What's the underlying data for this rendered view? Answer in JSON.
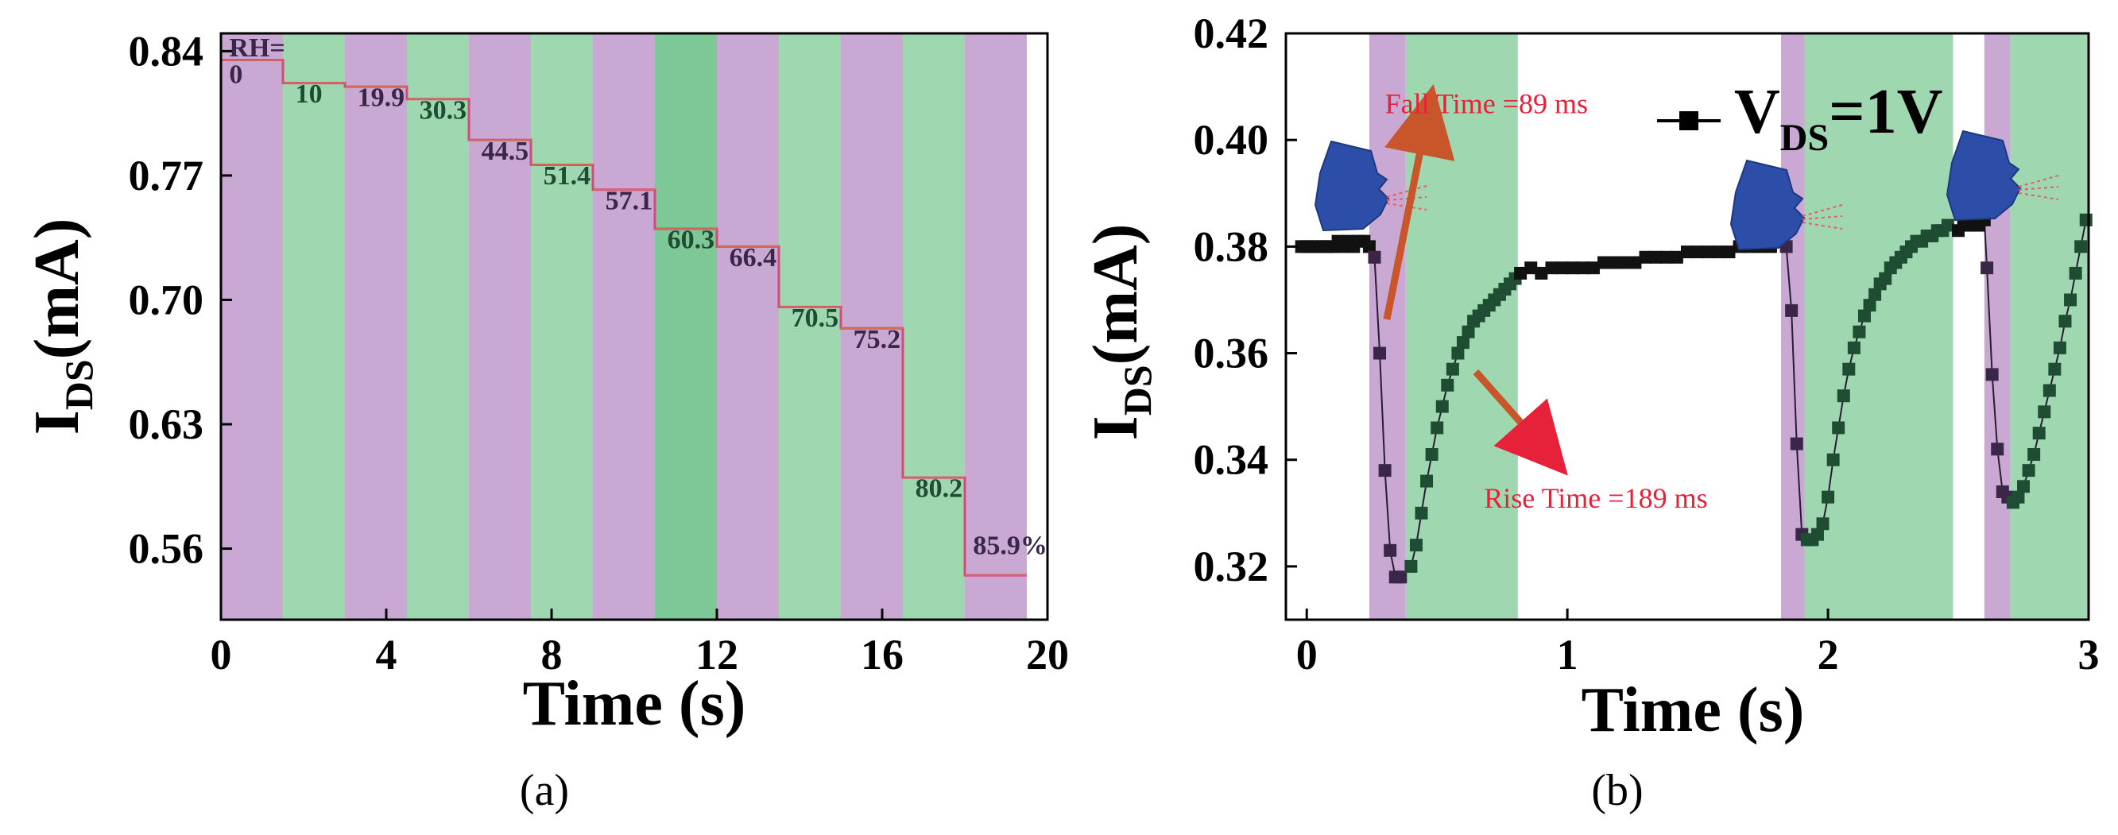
{
  "colors": {
    "purple": "#c9a9d3",
    "green": "#9fd8b0",
    "green_dark": "#7ec897",
    "trace_a": "#d9477a",
    "marker_dark": "#3a2648",
    "marker_green": "#1f4d33",
    "arrow_fall": "#c9552a",
    "arrow_rise": "#c9552a"
  },
  "captions": {
    "a": "(a)",
    "b": "(b)"
  },
  "chart_data": [
    {
      "id": "a",
      "type": "line",
      "title": "",
      "xlabel": "Time (s)",
      "ylabel_main": "I",
      "ylabel_sub": "DS",
      "ylabel_unit": "(mA)",
      "xlim": [
        0,
        20
      ],
      "ylim": [
        0.52,
        0.85
      ],
      "xticks": [
        0,
        4,
        8,
        12,
        16,
        20
      ],
      "xtick_labels": [
        "0",
        "4",
        "8",
        "12",
        "16",
        "20"
      ],
      "yticks": [
        0.56,
        0.63,
        0.7,
        0.77,
        0.84
      ],
      "ytick_labels": [
        "0.56",
        "0.63",
        "0.70",
        "0.77",
        "0.84"
      ],
      "bands": [
        {
          "x0": 0.0,
          "x1": 1.5,
          "kind": "purple"
        },
        {
          "x0": 1.5,
          "x1": 3.0,
          "kind": "green"
        },
        {
          "x0": 3.0,
          "x1": 4.5,
          "kind": "purple"
        },
        {
          "x0": 4.5,
          "x1": 6.0,
          "kind": "green"
        },
        {
          "x0": 6.0,
          "x1": 7.5,
          "kind": "purple"
        },
        {
          "x0": 7.5,
          "x1": 9.0,
          "kind": "green"
        },
        {
          "x0": 9.0,
          "x1": 10.5,
          "kind": "purple"
        },
        {
          "x0": 10.5,
          "x1": 12.0,
          "kind": "green_dark"
        },
        {
          "x0": 12.0,
          "x1": 13.5,
          "kind": "purple"
        },
        {
          "x0": 13.5,
          "x1": 15.0,
          "kind": "green"
        },
        {
          "x0": 15.0,
          "x1": 16.5,
          "kind": "purple"
        },
        {
          "x0": 16.5,
          "x1": 18.0,
          "kind": "green"
        },
        {
          "x0": 18.0,
          "x1": 19.5,
          "kind": "purple"
        }
      ],
      "steps": [
        {
          "x0": 0.0,
          "x1": 1.5,
          "y": 0.835
        },
        {
          "x0": 1.5,
          "x1": 3.0,
          "y": 0.822
        },
        {
          "x0": 3.0,
          "x1": 4.5,
          "y": 0.82
        },
        {
          "x0": 4.5,
          "x1": 6.0,
          "y": 0.813
        },
        {
          "x0": 6.0,
          "x1": 7.5,
          "y": 0.79
        },
        {
          "x0": 7.5,
          "x1": 9.0,
          "y": 0.776
        },
        {
          "x0": 9.0,
          "x1": 10.5,
          "y": 0.762
        },
        {
          "x0": 10.5,
          "x1": 12.0,
          "y": 0.74
        },
        {
          "x0": 12.0,
          "x1": 13.5,
          "y": 0.73
        },
        {
          "x0": 13.5,
          "x1": 15.0,
          "y": 0.696
        },
        {
          "x0": 15.0,
          "x1": 16.5,
          "y": 0.684
        },
        {
          "x0": 16.5,
          "x1": 18.0,
          "y": 0.6
        },
        {
          "x0": 18.0,
          "x1": 19.5,
          "y": 0.545
        }
      ],
      "rh_labels": [
        {
          "x": 0.2,
          "y": 0.837,
          "text": "RH=",
          "color": "#3a2648"
        },
        {
          "x": 0.2,
          "y": 0.822,
          "text": "0",
          "color": "#3a2648"
        },
        {
          "x": 1.8,
          "y": 0.811,
          "text": "10",
          "color": "#1f4d33"
        },
        {
          "x": 3.3,
          "y": 0.809,
          "text": "19.9",
          "color": "#3a2648"
        },
        {
          "x": 4.8,
          "y": 0.802,
          "text": "30.3",
          "color": "#1f4d33"
        },
        {
          "x": 6.3,
          "y": 0.779,
          "text": "44.5",
          "color": "#3a2648"
        },
        {
          "x": 7.8,
          "y": 0.765,
          "text": "51.4",
          "color": "#1f4d33"
        },
        {
          "x": 9.3,
          "y": 0.751,
          "text": "57.1",
          "color": "#3a2648"
        },
        {
          "x": 10.8,
          "y": 0.729,
          "text": "60.3",
          "color": "#1f4d33"
        },
        {
          "x": 12.3,
          "y": 0.719,
          "text": "66.4",
          "color": "#3a2648"
        },
        {
          "x": 13.8,
          "y": 0.685,
          "text": "70.5",
          "color": "#1f4d33"
        },
        {
          "x": 15.3,
          "y": 0.673,
          "text": "75.2",
          "color": "#3a2648"
        },
        {
          "x": 16.8,
          "y": 0.589,
          "text": "80.2",
          "color": "#1f4d33"
        },
        {
          "x": 18.2,
          "y": 0.557,
          "text": "85.9%",
          "color": "#3a2648"
        }
      ]
    },
    {
      "id": "b",
      "type": "scatter",
      "title": "",
      "xlabel": "Time (s)",
      "ylabel_main": "I",
      "ylabel_sub": "DS",
      "ylabel_unit": "(mA)",
      "xlim": [
        -0.08,
        3.0
      ],
      "ylim": [
        0.31,
        0.42
      ],
      "xticks": [
        0,
        1,
        2,
        3
      ],
      "xtick_labels": [
        "0",
        "1",
        "2",
        "3"
      ],
      "yticks": [
        0.32,
        0.34,
        0.36,
        0.38,
        0.4,
        0.42
      ],
      "ytick_labels": [
        "0.32",
        "0.34",
        "0.36",
        "0.38",
        "0.40",
        "0.42"
      ],
      "legend": {
        "label_main": "V",
        "label_sub": "DS",
        "label_rest": "=1V",
        "placement": "top-right"
      },
      "bands": [
        {
          "x0": 0.24,
          "x1": 0.38,
          "kind": "purple"
        },
        {
          "x0": 0.38,
          "x1": 0.81,
          "kind": "green"
        },
        {
          "x0": 1.82,
          "x1": 1.91,
          "kind": "purple"
        },
        {
          "x0": 1.91,
          "x1": 2.48,
          "kind": "green"
        },
        {
          "x0": 2.6,
          "x1": 2.7,
          "kind": "purple"
        },
        {
          "x0": 2.7,
          "x1": 3.0,
          "kind": "green"
        }
      ],
      "annotations": [
        {
          "text": "Fall Time =89 ms",
          "x": 0.3,
          "y": 0.405
        },
        {
          "text": "Rise Time =189 ms",
          "x": 0.68,
          "y": 0.331
        }
      ],
      "series": [
        {
          "name": "baseline-1",
          "kind": "dark",
          "x": [
            -0.02,
            0.0,
            0.02,
            0.04,
            0.06,
            0.08,
            0.1,
            0.12,
            0.14,
            0.16,
            0.18,
            0.2,
            0.22,
            0.24
          ],
          "y": [
            0.38,
            0.38,
            0.38,
            0.38,
            0.38,
            0.38,
            0.38,
            0.381,
            0.38,
            0.381,
            0.38,
            0.381,
            0.381,
            0.38
          ]
        },
        {
          "name": "fall-1",
          "kind": "dark",
          "x": [
            0.26,
            0.28,
            0.3,
            0.32,
            0.34,
            0.36
          ],
          "y": [
            0.378,
            0.36,
            0.338,
            0.323,
            0.318,
            0.318
          ]
        },
        {
          "name": "rise-1",
          "kind": "green",
          "x": [
            0.4,
            0.42,
            0.44,
            0.46,
            0.48,
            0.5,
            0.52,
            0.54,
            0.56,
            0.58,
            0.6,
            0.62,
            0.64,
            0.66,
            0.68,
            0.7,
            0.72,
            0.74,
            0.76,
            0.78,
            0.8
          ],
          "y": [
            0.32,
            0.324,
            0.33,
            0.336,
            0.341,
            0.346,
            0.35,
            0.354,
            0.357,
            0.36,
            0.362,
            0.364,
            0.366,
            0.367,
            0.368,
            0.369,
            0.37,
            0.371,
            0.372,
            0.373,
            0.374
          ]
        },
        {
          "name": "plateau",
          "kind": "dark",
          "x": [
            0.82,
            0.86,
            0.9,
            0.94,
            0.98,
            1.02,
            1.06,
            1.1,
            1.14,
            1.18,
            1.22,
            1.26,
            1.3,
            1.34,
            1.38,
            1.42,
            1.46,
            1.5,
            1.54,
            1.58,
            1.62,
            1.66,
            1.7,
            1.74,
            1.78
          ],
          "y": [
            0.375,
            0.376,
            0.375,
            0.376,
            0.376,
            0.376,
            0.376,
            0.376,
            0.377,
            0.377,
            0.377,
            0.377,
            0.378,
            0.378,
            0.378,
            0.378,
            0.379,
            0.379,
            0.379,
            0.379,
            0.379,
            0.38,
            0.38,
            0.38,
            0.38
          ]
        },
        {
          "name": "fall-2",
          "kind": "dark",
          "x": [
            1.84,
            1.86,
            1.88,
            1.9
          ],
          "y": [
            0.38,
            0.368,
            0.343,
            0.326
          ]
        },
        {
          "name": "rise-2",
          "kind": "green",
          "x": [
            1.92,
            1.94,
            1.96,
            1.98,
            2.0,
            2.02,
            2.04,
            2.06,
            2.08,
            2.1,
            2.12,
            2.14,
            2.16,
            2.18,
            2.2,
            2.22,
            2.24,
            2.26,
            2.28,
            2.3,
            2.32,
            2.34,
            2.36,
            2.38,
            2.4,
            2.42,
            2.44,
            2.46
          ],
          "y": [
            0.325,
            0.325,
            0.326,
            0.328,
            0.333,
            0.34,
            0.346,
            0.352,
            0.357,
            0.361,
            0.364,
            0.367,
            0.369,
            0.371,
            0.373,
            0.374,
            0.376,
            0.377,
            0.378,
            0.379,
            0.38,
            0.381,
            0.381,
            0.382,
            0.382,
            0.383,
            0.383,
            0.384
          ]
        },
        {
          "name": "peak-2",
          "kind": "dark",
          "x": [
            2.5,
            2.52,
            2.54,
            2.56,
            2.58,
            2.6
          ],
          "y": [
            0.383,
            0.384,
            0.384,
            0.384,
            0.384,
            0.385
          ]
        },
        {
          "name": "fall-3",
          "kind": "dark",
          "x": [
            2.61,
            2.63,
            2.65,
            2.67,
            2.69
          ],
          "y": [
            0.376,
            0.356,
            0.342,
            0.334,
            0.333
          ]
        },
        {
          "name": "rise-3",
          "kind": "green",
          "x": [
            2.71,
            2.73,
            2.75,
            2.77,
            2.79,
            2.81,
            2.83,
            2.85,
            2.87,
            2.89,
            2.91,
            2.93,
            2.95,
            2.97,
            2.99
          ],
          "y": [
            0.332,
            0.333,
            0.335,
            0.338,
            0.341,
            0.345,
            0.349,
            0.353,
            0.357,
            0.361,
            0.366,
            0.37,
            0.375,
            0.38,
            0.385
          ]
        }
      ]
    }
  ]
}
